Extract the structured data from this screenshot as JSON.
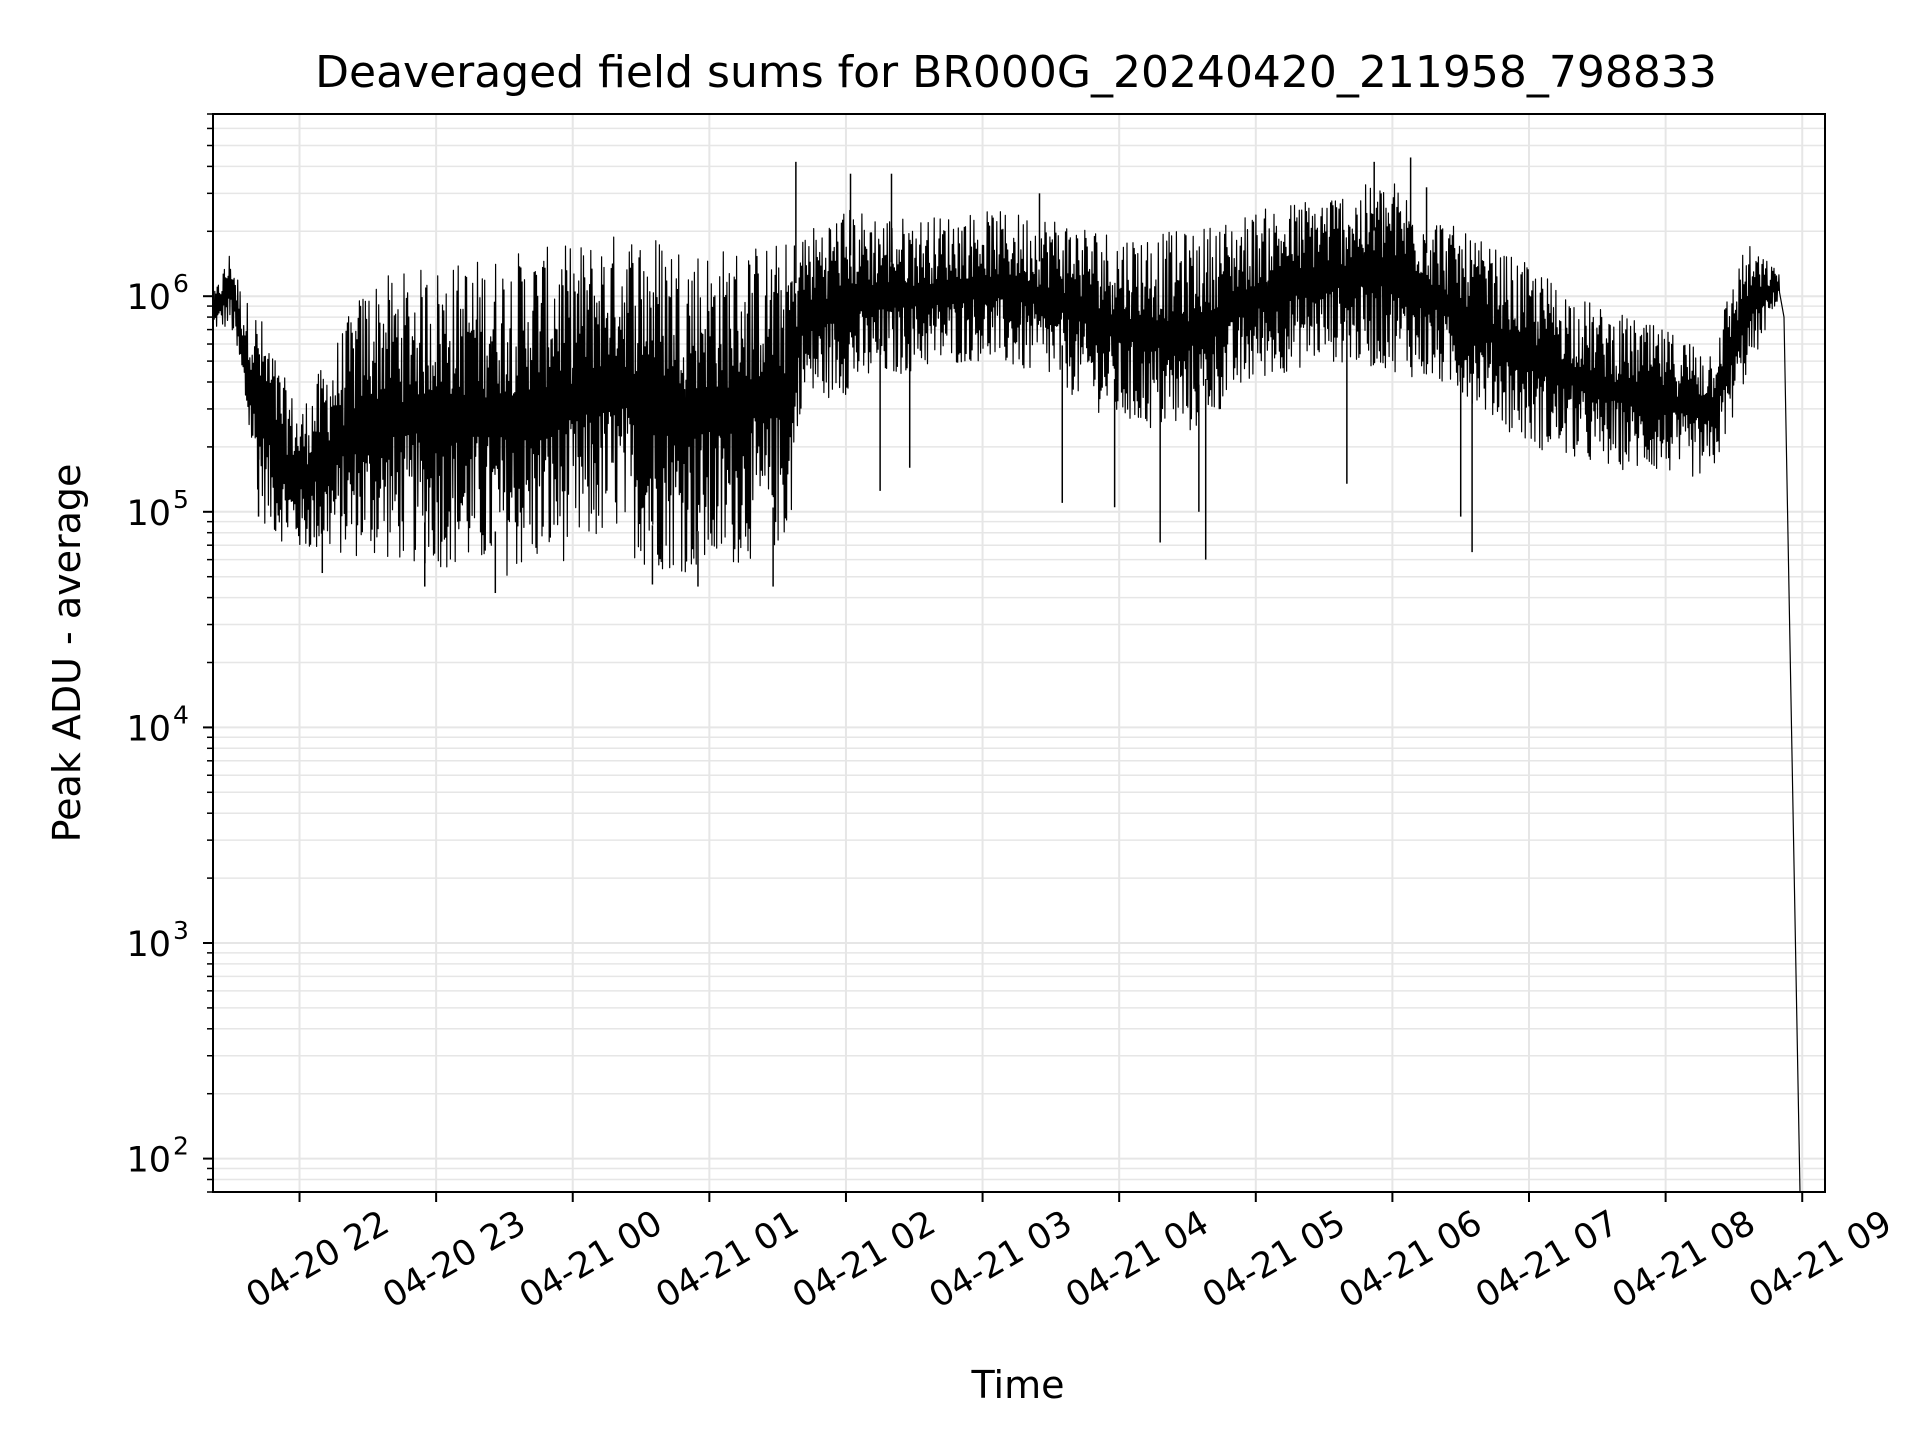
{
  "chart_data": {
    "type": "line",
    "title": "Deaveraged field sums for BR000G_20240420_211958_798833",
    "xlabel": "Time",
    "ylabel": "Peak ADU - average",
    "yscale": "log",
    "ylim": [
      70,
      7000000
    ],
    "xlim": [
      "2024-04-20 21:22",
      "2024-04-21 09:10"
    ],
    "grid": true,
    "line_color": "#000000",
    "grid_color": "#e6e6e6",
    "x_ticks": [
      {
        "value": "2024-04-20 22:00",
        "label": "04-20 22"
      },
      {
        "value": "2024-04-20 23:00",
        "label": "04-20 23"
      },
      {
        "value": "2024-04-21 00:00",
        "label": "04-21 00"
      },
      {
        "value": "2024-04-21 01:00",
        "label": "04-21 01"
      },
      {
        "value": "2024-04-21 02:00",
        "label": "04-21 02"
      },
      {
        "value": "2024-04-21 03:00",
        "label": "04-21 03"
      },
      {
        "value": "2024-04-21 04:00",
        "label": "04-21 04"
      },
      {
        "value": "2024-04-21 05:00",
        "label": "04-21 05"
      },
      {
        "value": "2024-04-21 06:00",
        "label": "04-21 06"
      },
      {
        "value": "2024-04-21 07:00",
        "label": "04-21 07"
      },
      {
        "value": "2024-04-21 08:00",
        "label": "04-21 08"
      },
      {
        "value": "2024-04-21 09:00",
        "label": "04-21 09"
      }
    ],
    "y_ticks": [
      {
        "value": 100,
        "base": "10",
        "exp": "2"
      },
      {
        "value": 1000,
        "base": "10",
        "exp": "3"
      },
      {
        "value": 10000,
        "base": "10",
        "exp": "4"
      },
      {
        "value": 100000,
        "base": "10",
        "exp": "5"
      },
      {
        "value": 1000000,
        "base": "10",
        "exp": "6"
      }
    ],
    "series": [
      {
        "envelope": [
          {
            "t": "2024-04-20 21:22",
            "low": 700000,
            "high": 1000000
          },
          {
            "t": "2024-04-20 21:30",
            "low": 700000,
            "high": 1700000
          },
          {
            "t": "2024-04-20 21:35",
            "low": 350000,
            "high": 1000000
          },
          {
            "t": "2024-04-20 21:40",
            "low": 150000,
            "high": 900000
          },
          {
            "t": "2024-04-20 21:45",
            "low": 85000,
            "high": 750000
          },
          {
            "t": "2024-04-20 21:50",
            "low": 75000,
            "high": 500000
          },
          {
            "t": "2024-04-20 22:00",
            "low": 65000,
            "high": 300000
          },
          {
            "t": "2024-04-20 22:30",
            "low": 60000,
            "high": 1200000
          },
          {
            "t": "2024-04-20 23:00",
            "low": 55000,
            "high": 1400000
          },
          {
            "t": "2024-04-20 23:30",
            "low": 50000,
            "high": 1600000
          },
          {
            "t": "2024-04-21 00:00",
            "low": 60000,
            "high": 1750000
          },
          {
            "t": "2024-04-21 00:20",
            "low": 80000,
            "high": 2000000
          },
          {
            "t": "2024-04-21 00:30",
            "low": 55000,
            "high": 2100000
          },
          {
            "t": "2024-04-21 01:00",
            "low": 50000,
            "high": 1700000
          },
          {
            "t": "2024-04-21 01:35",
            "low": 70000,
            "high": 1800000
          },
          {
            "t": "2024-04-21 01:40",
            "low": 300000,
            "high": 2000000
          },
          {
            "t": "2024-04-21 02:00",
            "low": 350000,
            "high": 2600000
          },
          {
            "t": "2024-04-21 02:30",
            "low": 450000,
            "high": 2300000
          },
          {
            "t": "2024-04-21 03:00",
            "low": 500000,
            "high": 2500000
          },
          {
            "t": "2024-04-21 03:30",
            "low": 400000,
            "high": 2400000
          },
          {
            "t": "2024-04-21 04:00",
            "low": 250000,
            "high": 2000000
          },
          {
            "t": "2024-04-21 04:30",
            "low": 220000,
            "high": 2000000
          },
          {
            "t": "2024-04-21 05:00",
            "low": 400000,
            "high": 2500000
          },
          {
            "t": "2024-04-21 05:30",
            "low": 500000,
            "high": 3000000
          },
          {
            "t": "2024-04-21 06:00",
            "low": 450000,
            "high": 3500000
          },
          {
            "t": "2024-04-21 06:30",
            "low": 350000,
            "high": 2000000
          },
          {
            "t": "2024-04-21 07:00",
            "low": 200000,
            "high": 1400000
          },
          {
            "t": "2024-04-21 07:30",
            "low": 160000,
            "high": 900000
          },
          {
            "t": "2024-04-21 08:00",
            "low": 150000,
            "high": 700000
          },
          {
            "t": "2024-04-21 08:20",
            "low": 140000,
            "high": 600000
          },
          {
            "t": "2024-04-21 08:35",
            "low": 400000,
            "high": 1800000
          },
          {
            "t": "2024-04-21 08:50",
            "low": 1000000,
            "high": 1300000
          }
        ],
        "spikes_low": [
          {
            "t": "2024-04-20 21:42",
            "y": 95000
          },
          {
            "t": "2024-04-20 22:10",
            "y": 52000
          },
          {
            "t": "2024-04-20 22:55",
            "y": 45000
          },
          {
            "t": "2024-04-20 23:26",
            "y": 42000
          },
          {
            "t": "2024-04-21 00:35",
            "y": 46000
          },
          {
            "t": "2024-04-21 00:55",
            "y": 45000
          },
          {
            "t": "2024-04-21 01:28",
            "y": 45000
          },
          {
            "t": "2024-04-21 02:15",
            "y": 125000
          },
          {
            "t": "2024-04-21 02:28",
            "y": 160000
          },
          {
            "t": "2024-04-21 03:35",
            "y": 110000
          },
          {
            "t": "2024-04-21 03:58",
            "y": 105000
          },
          {
            "t": "2024-04-21 04:18",
            "y": 72000
          },
          {
            "t": "2024-04-21 04:35",
            "y": 100000
          },
          {
            "t": "2024-04-21 04:38",
            "y": 60000
          },
          {
            "t": "2024-04-21 05:40",
            "y": 135000
          },
          {
            "t": "2024-04-21 06:30",
            "y": 95000
          },
          {
            "t": "2024-04-21 06:35",
            "y": 65000
          }
        ],
        "spikes_high": [
          {
            "t": "2024-04-21 01:38",
            "y": 4200000
          },
          {
            "t": "2024-04-21 02:02",
            "y": 3700000
          },
          {
            "t": "2024-04-21 02:20",
            "y": 3700000
          },
          {
            "t": "2024-04-21 03:25",
            "y": 3000000
          },
          {
            "t": "2024-04-21 05:52",
            "y": 4200000
          },
          {
            "t": "2024-04-21 06:08",
            "y": 4400000
          },
          {
            "t": "2024-04-21 06:15",
            "y": 3200000
          }
        ],
        "end_drop": {
          "t_start": "2024-04-21 08:52",
          "y_start": 800000,
          "t_end": "2024-04-21 08:59",
          "y_end": 70
        }
      }
    ]
  }
}
